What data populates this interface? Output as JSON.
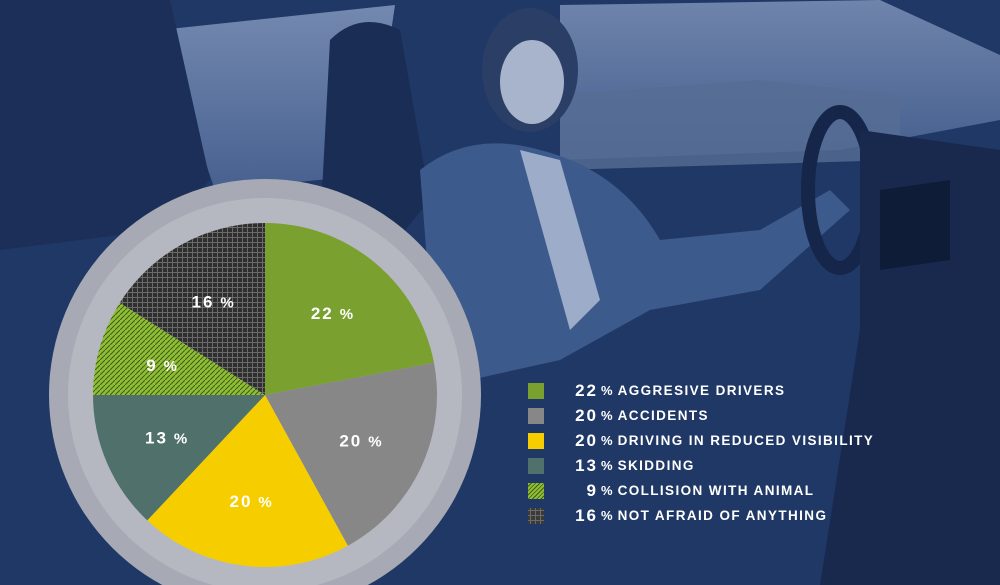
{
  "chart_data": {
    "type": "pie",
    "title": "",
    "unit": "%",
    "slices": [
      {
        "value": 22,
        "value_label": "22",
        "label": "AGGRESIVE DRIVERS",
        "color": "#7aa02f",
        "pattern": "solid"
      },
      {
        "value": 20,
        "value_label": "20",
        "label": "ACCIDENTS",
        "color": "#878787",
        "pattern": "solid"
      },
      {
        "value": 20,
        "value_label": "20",
        "label": "DRIVING IN REDUCED VISIBILITY",
        "color": "#f6ce00",
        "pattern": "solid"
      },
      {
        "value": 13,
        "value_label": "13",
        "label": "SKIDDING",
        "color": "#50706b",
        "pattern": "solid"
      },
      {
        "value": 9,
        "value_label": "9",
        "label": "COLLISION WITH ANIMAL",
        "color": "#8fbe34",
        "pattern": "dots"
      },
      {
        "value": 16,
        "value_label": "16",
        "label": "NOT AFRAID OF ANYTHING",
        "color": "#3a3a3a",
        "pattern": "grid"
      }
    ],
    "percent_sign": "%",
    "ring_color": "#a7aab4",
    "label_color": "#ffffff",
    "legend_position": "right"
  }
}
